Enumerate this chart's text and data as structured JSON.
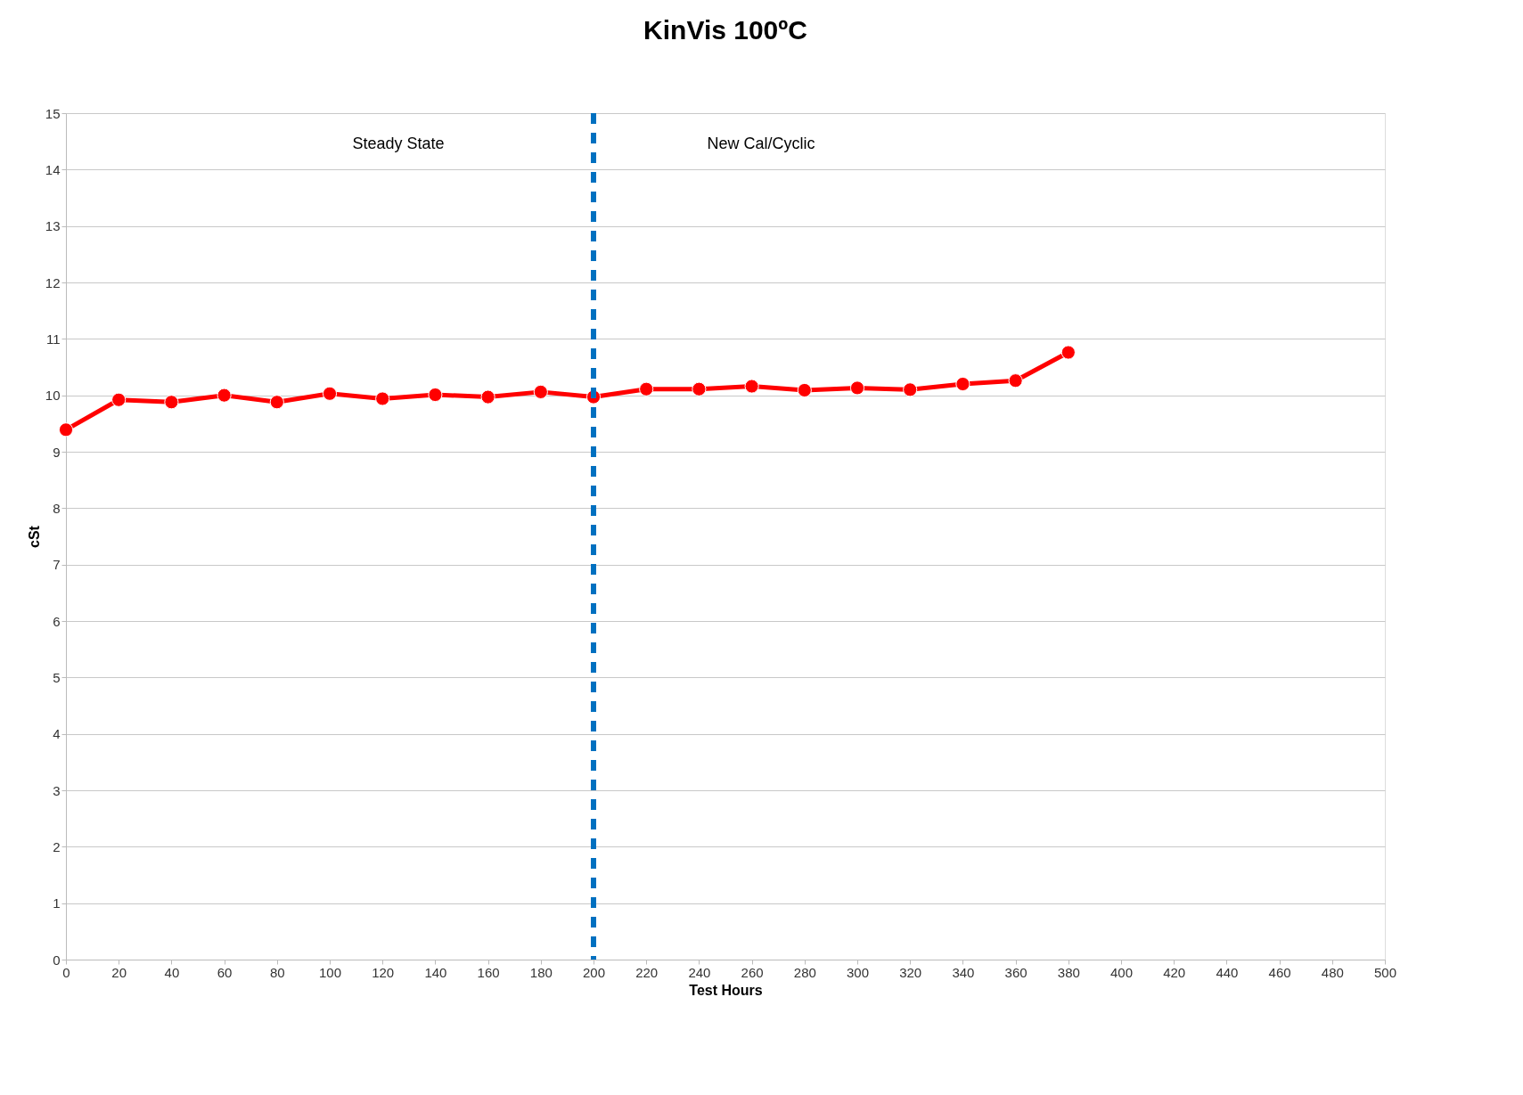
{
  "chart_data": {
    "type": "line",
    "title": "KinVis 100ºC",
    "xlabel": "Test Hours",
    "ylabel": "cSt",
    "x": [
      0,
      20,
      40,
      60,
      80,
      100,
      120,
      140,
      160,
      180,
      200,
      220,
      240,
      260,
      280,
      300,
      320,
      340,
      360,
      380
    ],
    "series": [
      {
        "color": "#ff0000",
        "values": [
          9.39,
          9.92,
          9.88,
          10.0,
          9.88,
          10.03,
          9.94,
          10.01,
          9.97,
          10.06,
          9.97,
          10.11,
          10.11,
          10.16,
          10.09,
          10.13,
          10.1,
          10.2,
          10.26,
          10.76
        ]
      }
    ],
    "xlim": [
      0,
      500
    ],
    "xticks": [
      0,
      20,
      40,
      60,
      80,
      100,
      120,
      140,
      160,
      180,
      200,
      220,
      240,
      260,
      280,
      300,
      320,
      340,
      360,
      380,
      400,
      420,
      440,
      460,
      480,
      500
    ],
    "ylim": [
      0,
      15
    ],
    "yticks": [
      0,
      1,
      2,
      3,
      4,
      5,
      6,
      7,
      8,
      9,
      10,
      11,
      12,
      13,
      14,
      15
    ],
    "ref_lines": [
      {
        "axis": "x",
        "value": 200,
        "color": "#0070c0",
        "line_style": "dashed"
      }
    ],
    "annotations": [
      "Steady State",
      "New Cal/Cyclic"
    ],
    "grid": "y",
    "marker": "circle",
    "line_style": "solid"
  }
}
